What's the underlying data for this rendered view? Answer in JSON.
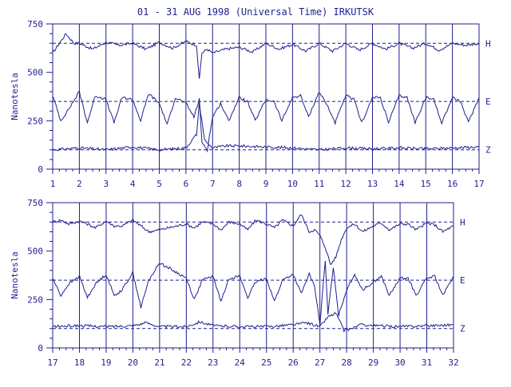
{
  "title": "01 - 31 AUG 1998 (Universal Time) IRKUTSK",
  "colors": {
    "trace": "#1f1f8f",
    "background": "#ffffff"
  },
  "chart_data": [
    {
      "type": "line",
      "panel": "top",
      "ylabel": "Nanotesla",
      "ylim": [
        0,
        750
      ],
      "yticks": [
        0,
        250,
        500,
        750
      ],
      "xlim": [
        1,
        17
      ],
      "xticks": [
        1,
        2,
        3,
        4,
        5,
        6,
        7,
        8,
        9,
        10,
        11,
        12,
        13,
        14,
        15,
        16,
        17
      ],
      "grid": "vertical lines at each day",
      "baselines": [
        650,
        350,
        100
      ],
      "series": [
        {
          "name": "H",
          "baseline": 650,
          "x": [
            1,
            1.2,
            1.5,
            1.8,
            2,
            2.5,
            3,
            3.5,
            4,
            4.5,
            5,
            5.5,
            6,
            6.2,
            6.4,
            6.5,
            6.6,
            6.8,
            7,
            7.5,
            8,
            8.5,
            9,
            9.5,
            10,
            10.5,
            11,
            11.5,
            12,
            12.5,
            13,
            13.5,
            14,
            14.5,
            15,
            15.5,
            16,
            16.5,
            17
          ],
          "values": [
            600,
            640,
            700,
            650,
            650,
            620,
            655,
            640,
            650,
            620,
            655,
            625,
            660,
            650,
            640,
            460,
            600,
            620,
            600,
            620,
            630,
            605,
            650,
            620,
            645,
            610,
            650,
            610,
            650,
            615,
            650,
            620,
            650,
            625,
            650,
            615,
            650,
            640,
            650
          ]
        },
        {
          "name": "E",
          "baseline": 350,
          "x": [
            1,
            1.3,
            1.6,
            2,
            2.3,
            2.6,
            3,
            3.3,
            3.6,
            4,
            4.3,
            4.6,
            5,
            5.3,
            5.6,
            6,
            6.3,
            6.5,
            6.6,
            6.8,
            7,
            7.3,
            7.6,
            8,
            8.3,
            8.6,
            9,
            9.3,
            9.6,
            10,
            10.3,
            10.6,
            11,
            11.3,
            11.6,
            12,
            12.3,
            12.6,
            13,
            13.3,
            13.6,
            14,
            14.3,
            14.6,
            15,
            15.3,
            15.6,
            16,
            16.3,
            16.6,
            17
          ],
          "values": [
            380,
            250,
            310,
            400,
            240,
            380,
            360,
            240,
            370,
            360,
            250,
            390,
            340,
            230,
            370,
            340,
            270,
            360,
            140,
            100,
            270,
            340,
            250,
            370,
            350,
            250,
            360,
            350,
            250,
            370,
            380,
            270,
            400,
            330,
            240,
            380,
            360,
            240,
            370,
            370,
            240,
            380,
            370,
            240,
            370,
            360,
            240,
            370,
            350,
            240,
            370
          ]
        },
        {
          "name": "Z",
          "baseline": 100,
          "x": [
            1,
            2,
            3,
            4,
            5,
            6,
            6.4,
            6.5,
            6.6,
            6.7,
            7,
            7.5,
            8,
            9,
            10,
            11,
            12,
            13,
            14,
            15,
            16,
            17
          ],
          "values": [
            100,
            110,
            100,
            115,
            100,
            110,
            180,
            340,
            250,
            150,
            110,
            120,
            120,
            115,
            110,
            100,
            110,
            105,
            110,
            105,
            110,
            115
          ]
        }
      ]
    },
    {
      "type": "line",
      "panel": "bottom",
      "ylabel": "Nanotesla",
      "ylim": [
        0,
        750
      ],
      "yticks": [
        0,
        250,
        500,
        750
      ],
      "xlim": [
        17,
        32
      ],
      "xticks": [
        17,
        18,
        19,
        20,
        21,
        22,
        23,
        24,
        25,
        26,
        27,
        28,
        29,
        30,
        31,
        32
      ],
      "grid": "vertical lines at each day",
      "baselines": [
        650,
        350,
        100
      ],
      "series": [
        {
          "name": "H",
          "baseline": 650,
          "x": [
            17,
            17.3,
            17.6,
            18,
            18.3,
            18.6,
            19,
            19.3,
            19.6,
            20,
            20.3,
            20.6,
            21,
            22,
            22.3,
            22.6,
            23,
            23.3,
            23.6,
            24,
            24.3,
            24.6,
            25,
            25.3,
            25.6,
            26,
            26.3,
            26.6,
            26.8,
            27,
            27.2,
            27.4,
            27.6,
            27.8,
            28,
            28.3,
            28.6,
            29,
            29.3,
            29.6,
            30,
            30.3,
            30.6,
            31,
            31.3,
            31.6,
            32
          ],
          "values": [
            650,
            660,
            640,
            655,
            640,
            620,
            655,
            630,
            630,
            660,
            630,
            600,
            610,
            640,
            620,
            650,
            640,
            610,
            650,
            640,
            610,
            660,
            640,
            620,
            660,
            630,
            690,
            600,
            610,
            580,
            520,
            430,
            470,
            560,
            620,
            640,
            600,
            630,
            645,
            610,
            640,
            640,
            610,
            645,
            635,
            600,
            630
          ]
        },
        {
          "name": "E",
          "baseline": 350,
          "x": [
            17,
            17.3,
            17.6,
            18,
            18.3,
            18.6,
            19,
            19.3,
            19.6,
            20,
            20.3,
            20.6,
            21,
            22,
            22.3,
            22.6,
            23,
            23.3,
            23.6,
            24,
            24.3,
            24.6,
            25,
            25.3,
            25.6,
            26,
            26.3,
            26.6,
            26.8,
            27,
            27.2,
            27.3,
            27.5,
            27.7,
            28,
            28.3,
            28.6,
            29,
            29.3,
            29.6,
            30,
            30.3,
            30.6,
            31,
            31.3,
            31.6,
            32
          ],
          "values": [
            360,
            270,
            330,
            370,
            260,
            330,
            380,
            270,
            300,
            390,
            210,
            350,
            440,
            360,
            250,
            350,
            370,
            240,
            360,
            370,
            260,
            340,
            360,
            240,
            350,
            380,
            280,
            380,
            320,
            120,
            450,
            170,
            420,
            170,
            300,
            380,
            300,
            340,
            370,
            270,
            360,
            360,
            270,
            360,
            370,
            270,
            370
          ]
        },
        {
          "name": "Z",
          "baseline": 100,
          "x": [
            17,
            18,
            19,
            20,
            20.5,
            21,
            22,
            22.5,
            23,
            24,
            25,
            26,
            26.5,
            27,
            27.3,
            27.6,
            27.9,
            28.2,
            28.5,
            29,
            30,
            31,
            32
          ],
          "values": [
            110,
            115,
            110,
            115,
            130,
            110,
            110,
            135,
            115,
            110,
            110,
            120,
            130,
            110,
            160,
            180,
            90,
            100,
            120,
            115,
            110,
            115,
            120
          ]
        }
      ]
    }
  ]
}
